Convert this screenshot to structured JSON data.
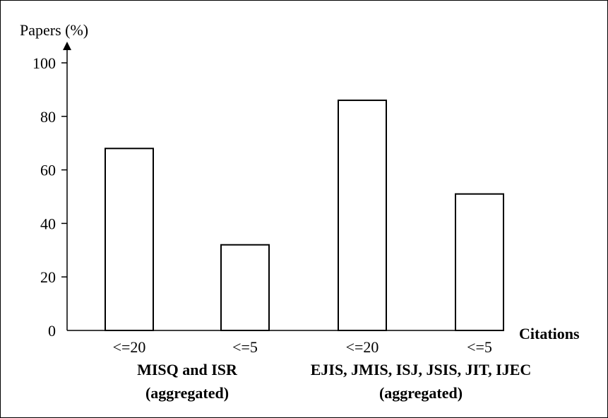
{
  "chart_data": {
    "type": "bar",
    "ylabel": "Papers (%)",
    "xlabel": "Citations",
    "ylim": [
      0,
      100
    ],
    "yticks": [
      0,
      20,
      40,
      60,
      80,
      100
    ],
    "categories": [
      "<=20",
      "<=5",
      "<=20",
      "<=5"
    ],
    "values": [
      68,
      32,
      86,
      51
    ],
    "groups": [
      {
        "lines": [
          "MISQ and ISR",
          "(aggregated)"
        ],
        "categories": [
          0,
          1
        ]
      },
      {
        "lines": [
          "EJIS, JMIS, ISJ, JSIS, JIT, IJEC",
          "(aggregated)"
        ],
        "categories": [
          2,
          3
        ]
      }
    ],
    "bar_fill": "#ffffff",
    "bar_stroke": "#000000",
    "grid": false,
    "legend": "none"
  }
}
